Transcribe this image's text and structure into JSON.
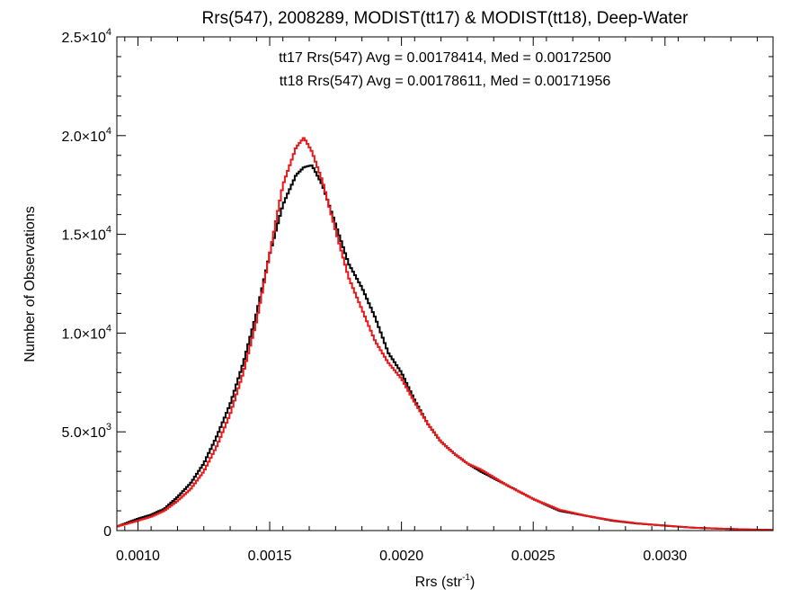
{
  "chart_data": {
    "type": "line",
    "title": "Rrs(547), 2008289, MODIST(tt17) & MODIST(tt18), Deep-Water",
    "xlabel": "Rrs (str",
    "xlabel_sup": "-1",
    "xlabel_end": ")",
    "ylabel": "Number of Observations",
    "xlim": [
      0.00092,
      0.00341
    ],
    "ylim": [
      0,
      25000
    ],
    "xticks": [
      {
        "value": 0.001,
        "label": "0.0010"
      },
      {
        "value": 0.0015,
        "label": "0.0015"
      },
      {
        "value": 0.002,
        "label": "0.0020"
      },
      {
        "value": 0.0025,
        "label": "0.0025"
      },
      {
        "value": 0.003,
        "label": "0.0030"
      }
    ],
    "yticks": [
      {
        "value": 0,
        "mant": "0",
        "exp": ""
      },
      {
        "value": 5000,
        "mant": "5.0×10",
        "exp": "3"
      },
      {
        "value": 10000,
        "mant": "1.0×10",
        "exp": "4"
      },
      {
        "value": 15000,
        "mant": "1.5×10",
        "exp": "4"
      },
      {
        "value": 20000,
        "mant": "2.0×10",
        "exp": "4"
      },
      {
        "value": 25000,
        "mant": "2.5×10",
        "exp": "4"
      }
    ],
    "annotations": [
      {
        "text": "tt17 Rrs(547) Avg = 0.00178414, Med = 0.00172500",
        "color": "#000000"
      },
      {
        "text": "tt18 Rrs(547) Avg = 0.00178611, Med = 0.00171956",
        "color": "#e8191b"
      }
    ],
    "series": [
      {
        "color": "#000000",
        "x": [
          0.00092,
          0.001,
          0.00105,
          0.0011,
          0.00115,
          0.0012,
          0.00125,
          0.0013,
          0.00135,
          0.0014,
          0.00145,
          0.0015,
          0.00155,
          0.0016,
          0.00163,
          0.00166,
          0.0017,
          0.00175,
          0.0018,
          0.00185,
          0.0019,
          0.00195,
          0.002,
          0.00205,
          0.0021,
          0.00215,
          0.0022,
          0.00225,
          0.0023,
          0.0024,
          0.0025,
          0.0026,
          0.0027,
          0.0028,
          0.0029,
          0.003,
          0.0031,
          0.0032,
          0.0033,
          0.00341
        ],
        "y": [
          200,
          600,
          800,
          1100,
          1700,
          2400,
          3400,
          4800,
          6400,
          8500,
          11000,
          14000,
          16500,
          18000,
          18400,
          18500,
          17500,
          15500,
          13500,
          12300,
          10800,
          9000,
          8000,
          6600,
          5400,
          4500,
          3900,
          3400,
          3000,
          2300,
          1600,
          1000,
          750,
          500,
          350,
          250,
          150,
          100,
          60,
          30
        ]
      },
      {
        "color": "#e8191b",
        "x": [
          0.00092,
          0.001,
          0.00105,
          0.0011,
          0.00115,
          0.0012,
          0.00125,
          0.0013,
          0.00135,
          0.0014,
          0.00145,
          0.0015,
          0.00155,
          0.0016,
          0.00163,
          0.00166,
          0.0017,
          0.00175,
          0.0018,
          0.00185,
          0.0019,
          0.00195,
          0.002,
          0.00205,
          0.0021,
          0.00215,
          0.0022,
          0.00225,
          0.0023,
          0.0024,
          0.0025,
          0.0026,
          0.0027,
          0.0028,
          0.0029,
          0.003,
          0.0031,
          0.0032,
          0.0033,
          0.00341
        ],
        "y": [
          200,
          500,
          700,
          1000,
          1500,
          2100,
          3000,
          4300,
          5900,
          8000,
          10600,
          14000,
          17500,
          19400,
          19900,
          19200,
          17700,
          15200,
          12800,
          11200,
          9600,
          8500,
          7700,
          6500,
          5400,
          4500,
          3900,
          3400,
          3100,
          2300,
          1600,
          1050,
          750,
          520,
          360,
          250,
          150,
          100,
          60,
          30
        ]
      }
    ]
  }
}
